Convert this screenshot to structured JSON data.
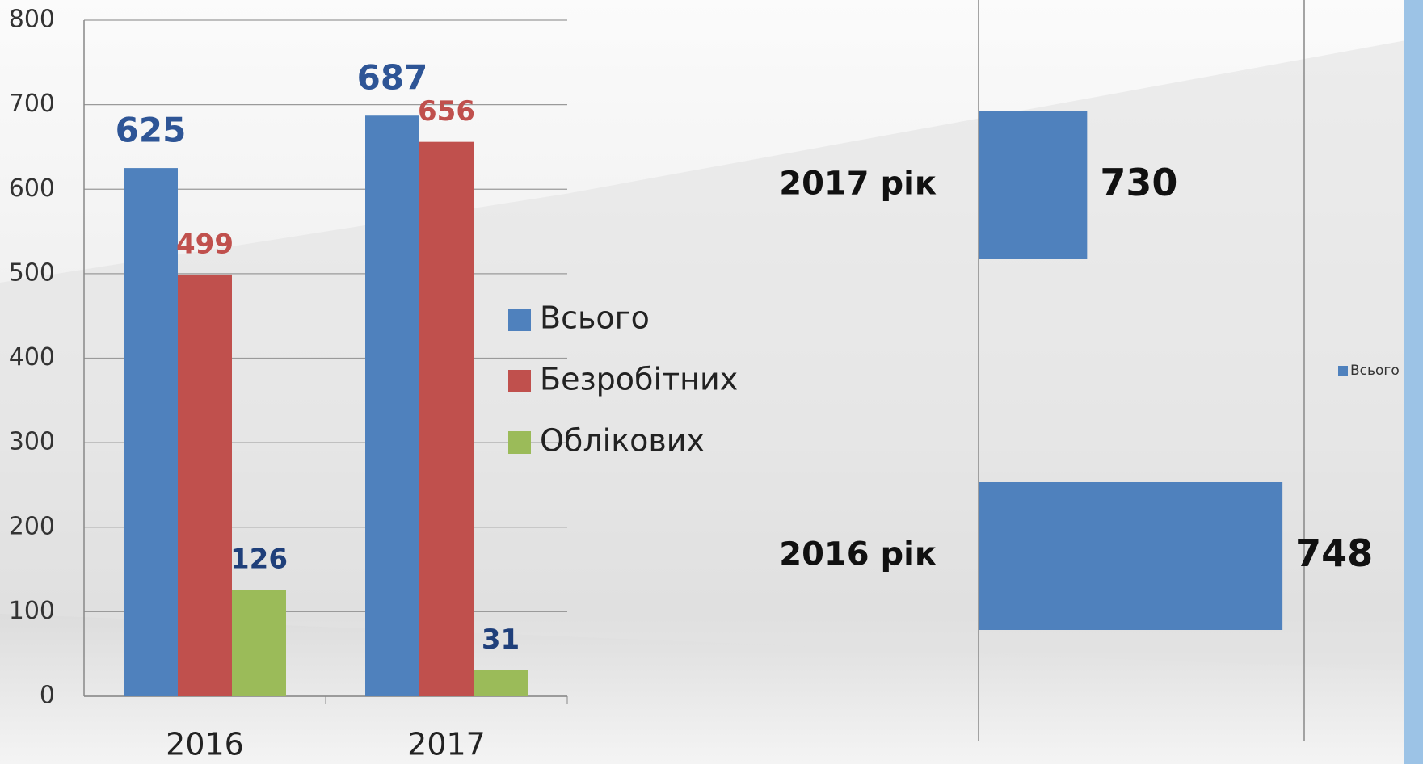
{
  "chart_data": [
    {
      "type": "bar",
      "categories": [
        "2016",
        "2017"
      ],
      "series": [
        {
          "name": "Всього",
          "color": "#4f81bd",
          "label_color": "#2e5596",
          "values": [
            625,
            687
          ]
        },
        {
          "name": "Безробітних",
          "color": "#c0504d",
          "label_color": "#c0504d",
          "values": [
            499,
            656
          ]
        },
        {
          "name": "Облікових",
          "color": "#9bbb59",
          "label_color": "#1f3f7a",
          "values": [
            126,
            31
          ]
        }
      ],
      "ylim": [
        0,
        800
      ],
      "yticks": [
        0,
        100,
        200,
        300,
        400,
        500,
        600,
        700,
        800
      ],
      "grid": true,
      "legend": "right"
    },
    {
      "type": "barh",
      "categories": [
        "2017 рік",
        "2016 рік"
      ],
      "series": [
        {
          "name": "Всього",
          "color": "#4f81bd",
          "values": [
            730,
            748
          ]
        }
      ],
      "xlim": [
        720,
        750
      ],
      "legend": "right"
    }
  ]
}
